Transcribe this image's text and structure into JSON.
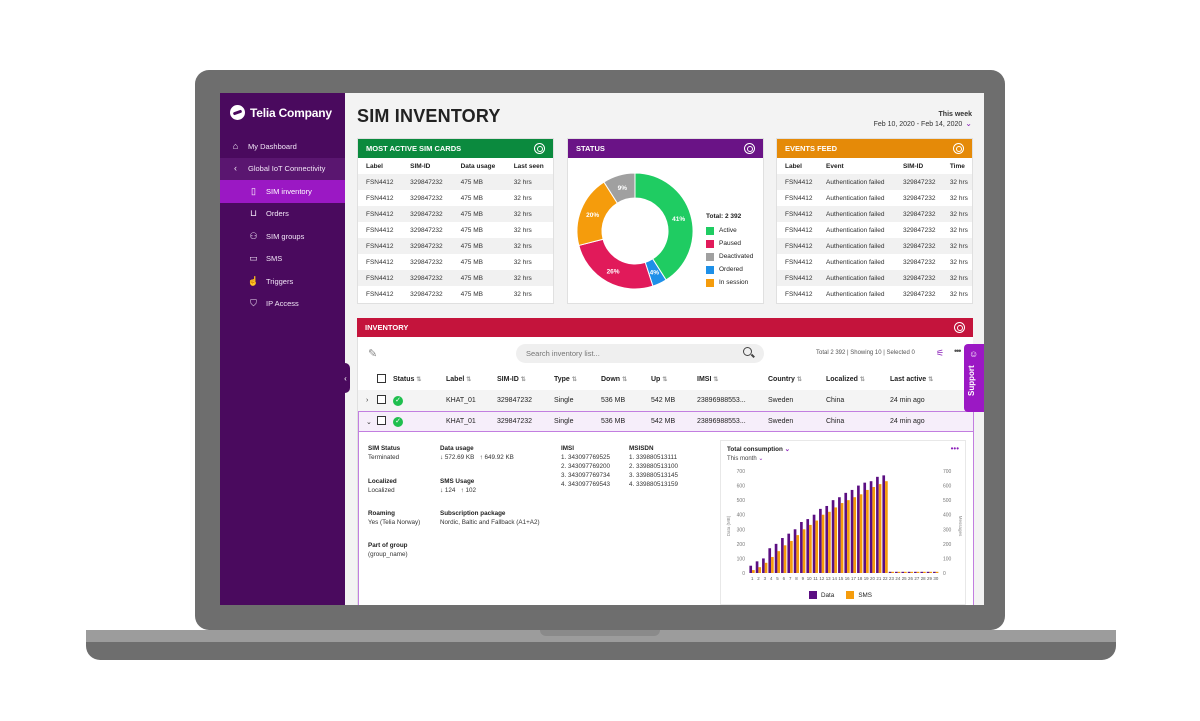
{
  "brand": {
    "name": "Telia Company"
  },
  "sidebar": {
    "items": [
      {
        "label": "My Dashboard",
        "icon": "home-icon"
      },
      {
        "label": "Global IoT Connectivity",
        "icon": "chevron-left-icon"
      },
      {
        "label": "SIM inventory",
        "icon": "sim-icon"
      },
      {
        "label": "Orders",
        "icon": "cart-icon"
      },
      {
        "label": "SIM groups",
        "icon": "group-icon"
      },
      {
        "label": "SMS",
        "icon": "chat-icon"
      },
      {
        "label": "Triggers",
        "icon": "touch-icon"
      },
      {
        "label": "IP Access",
        "icon": "shield-icon"
      }
    ]
  },
  "header": {
    "title": "SIM INVENTORY",
    "period_label": "This week",
    "period_range": "Feb 10, 2020 - Feb 14, 2020"
  },
  "most_active": {
    "title": "MOST ACTIVE SIM CARDS",
    "color": "#0b8a3e",
    "columns": [
      "Label",
      "SIM-ID",
      "Data usage",
      "Last seen"
    ],
    "rows": [
      [
        "FSN4412",
        "329847232",
        "475 MB",
        "32 hrs"
      ],
      [
        "FSN4412",
        "329847232",
        "475 MB",
        "32 hrs"
      ],
      [
        "FSN4412",
        "329847232",
        "475 MB",
        "32 hrs"
      ],
      [
        "FSN4412",
        "329847232",
        "475 MB",
        "32 hrs"
      ],
      [
        "FSN4412",
        "329847232",
        "475 MB",
        "32 hrs"
      ],
      [
        "FSN4412",
        "329847232",
        "475 MB",
        "32 hrs"
      ],
      [
        "FSN4412",
        "329847232",
        "475 MB",
        "32 hrs"
      ],
      [
        "FSN4412",
        "329847232",
        "475 MB",
        "32 hrs"
      ]
    ]
  },
  "status": {
    "title": "STATUS",
    "color": "#6a1386",
    "total_label": "Total: 2 392",
    "segments": [
      {
        "name": "Active",
        "pct": 41,
        "label": "41%",
        "color": "#1fcc62"
      },
      {
        "name": "Ordered",
        "pct": 4,
        "label": "4%",
        "color": "#1e90e8"
      },
      {
        "name": "Paused",
        "pct": 26,
        "label": "26%",
        "color": "#e11a5a"
      },
      {
        "name": "In session",
        "pct": 20,
        "label": "20%",
        "color": "#f59c0c"
      },
      {
        "name": "Deactivated",
        "pct": 9,
        "label": "9%",
        "color": "#a0a0a0"
      }
    ],
    "legend": [
      {
        "name": "Active",
        "color": "#1fcc62"
      },
      {
        "name": "Paused",
        "color": "#e11a5a"
      },
      {
        "name": "Deactivated",
        "color": "#a0a0a0"
      },
      {
        "name": "Ordered",
        "color": "#1e90e8"
      },
      {
        "name": "In session",
        "color": "#f59c0c"
      }
    ]
  },
  "events": {
    "title": "EVENTS FEED",
    "color": "#e58a08",
    "columns": [
      "Label",
      "Event",
      "SIM-ID",
      "Time"
    ],
    "rows": [
      [
        "FSN4412",
        "Authentication failed",
        "329847232",
        "32 hrs"
      ],
      [
        "FSN4412",
        "Authentication failed",
        "329847232",
        "32 hrs"
      ],
      [
        "FSN4412",
        "Authentication failed",
        "329847232",
        "32 hrs"
      ],
      [
        "FSN4412",
        "Authentication failed",
        "329847232",
        "32 hrs"
      ],
      [
        "FSN4412",
        "Authentication failed",
        "329847232",
        "32 hrs"
      ],
      [
        "FSN4412",
        "Authentication failed",
        "329847232",
        "32 hrs"
      ],
      [
        "FSN4412",
        "Authentication failed",
        "329847232",
        "32 hrs"
      ],
      [
        "FSN4412",
        "Authentication failed",
        "329847232",
        "32 hrs"
      ]
    ]
  },
  "inventory": {
    "title": "INVENTORY",
    "search_placeholder": "Search inventory list...",
    "counts": "Total 2 392  |  Showing 10  |  Selected 0",
    "columns": [
      "Status",
      "Label",
      "SIM-ID",
      "Type",
      "Down",
      "Up",
      "IMSI",
      "Country",
      "Localized",
      "Last active"
    ],
    "rows": [
      {
        "label": "KHAT_01",
        "sim_id": "329847232",
        "type": "Single",
        "down": "536 MB",
        "up": "542 MB",
        "imsi": "23896988553...",
        "country": "Sweden",
        "localized": "China",
        "last_active": "24 min ago"
      },
      {
        "label": "KHAT_01",
        "sim_id": "329847232",
        "type": "Single",
        "down": "536 MB",
        "up": "542 MB",
        "imsi": "23896988553...",
        "country": "Sweden",
        "localized": "China",
        "last_active": "24 min ago"
      }
    ],
    "detail": {
      "sim_status_k": "SIM Status",
      "sim_status_v": "Terminated",
      "localized_k": "Localized",
      "localized_v": "Localized",
      "roaming_k": "Roaming",
      "roaming_v": "Yes (Telia Norway)",
      "group_k": "Part of group",
      "group_v": "(group_name)",
      "data_usage_k": "Data usage",
      "data_down": "↓ 572.69 KB",
      "data_up": "↑ 649.92 KB",
      "sms_usage_k": "SMS Usage",
      "sms_down": "↓ 124",
      "sms_up": "↑ 102",
      "subscription_k": "Subscription package",
      "subscription_v": "Nordic, Baltic and Fallback (A1+A2)",
      "imsi_k": "IMSI",
      "imsi_list": [
        "1. 343097769525",
        "2. 343097769200",
        "3. 343097769734",
        "4. 343097769543"
      ],
      "msisdn_k": "MSISDN",
      "msisdn_list": [
        "1. 339880513111",
        "2. 339880513100",
        "3. 339880513145",
        "4. 339880513159"
      ]
    },
    "consumption": {
      "title": "Total consumption",
      "period": "This month",
      "left_axis": "Data (MB)",
      "right_axis": "Messages",
      "legend_data": "Data",
      "legend_sms": "SMS"
    }
  },
  "support": {
    "label": "Support"
  },
  "chart_data": {
    "type": "bar",
    "categories": [
      "1",
      "2",
      "3",
      "4",
      "5",
      "6",
      "7",
      "8",
      "9",
      "10",
      "11",
      "12",
      "13",
      "14",
      "15",
      "16",
      "17",
      "18",
      "19",
      "20",
      "21",
      "22",
      "23",
      "24",
      "25",
      "26",
      "27",
      "28",
      "29",
      "30"
    ],
    "series": [
      {
        "name": "Data",
        "color": "#5b0e82",
        "values": [
          50,
          80,
          100,
          170,
          200,
          240,
          270,
          300,
          350,
          370,
          400,
          440,
          460,
          500,
          520,
          550,
          570,
          600,
          620,
          630,
          660,
          670,
          0,
          0,
          0,
          0,
          0,
          0,
          0,
          0
        ]
      },
      {
        "name": "SMS",
        "color": "#f59c0c",
        "values": [
          20,
          40,
          70,
          110,
          150,
          190,
          220,
          260,
          300,
          330,
          360,
          400,
          420,
          450,
          480,
          500,
          520,
          540,
          570,
          590,
          610,
          630,
          0,
          0,
          0,
          0,
          0,
          0,
          0,
          0
        ]
      }
    ],
    "yticks_left": [
      "0",
      "100",
      "200",
      "300",
      "400",
      "500",
      "600",
      "700"
    ],
    "yticks_right": [
      "0",
      "100",
      "200",
      "300",
      "400",
      "500",
      "600",
      "700"
    ],
    "ylim": [
      0,
      700
    ]
  }
}
